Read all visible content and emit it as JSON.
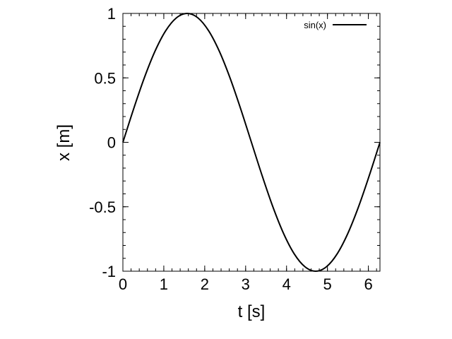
{
  "chart_data": {
    "type": "line",
    "title": "",
    "xlabel": "t [s]",
    "ylabel": "x [m]",
    "xlim": [
      0,
      6.283185307
    ],
    "ylim": [
      -1,
      1
    ],
    "x_ticks": [
      0,
      1,
      2,
      3,
      4,
      5,
      6
    ],
    "x_tick_labels": [
      "0",
      "1",
      "2",
      "3",
      "4",
      "5",
      "6"
    ],
    "y_ticks": [
      1,
      0.5,
      0,
      -0.5,
      -1
    ],
    "y_tick_labels": [
      "1",
      "0.5",
      "0",
      "-0.5",
      "-1"
    ],
    "x_minor_step": 0.2,
    "y_minor_step": 0.1,
    "grid": false,
    "legend_position": "top-right",
    "series": [
      {
        "name": "sin(x)",
        "color": "#000000",
        "x": [
          0,
          0.2618,
          0.5236,
          0.7854,
          1.0472,
          1.309,
          1.5708,
          1.8326,
          2.0944,
          2.3562,
          2.618,
          2.8798,
          3.1416,
          3.4034,
          3.6652,
          3.927,
          4.1888,
          4.4506,
          4.7124,
          4.9742,
          5.236,
          5.4978,
          5.7596,
          6.0214,
          6.2832
        ],
        "y": [
          0,
          0.2588,
          0.5,
          0.7071,
          0.866,
          0.9659,
          1,
          0.9659,
          0.866,
          0.7071,
          0.5,
          0.2588,
          0,
          -0.2588,
          -0.5,
          -0.7071,
          -0.866,
          -0.9659,
          -1,
          -0.9659,
          -0.866,
          -0.7071,
          -0.5,
          -0.2588,
          0
        ]
      }
    ]
  }
}
